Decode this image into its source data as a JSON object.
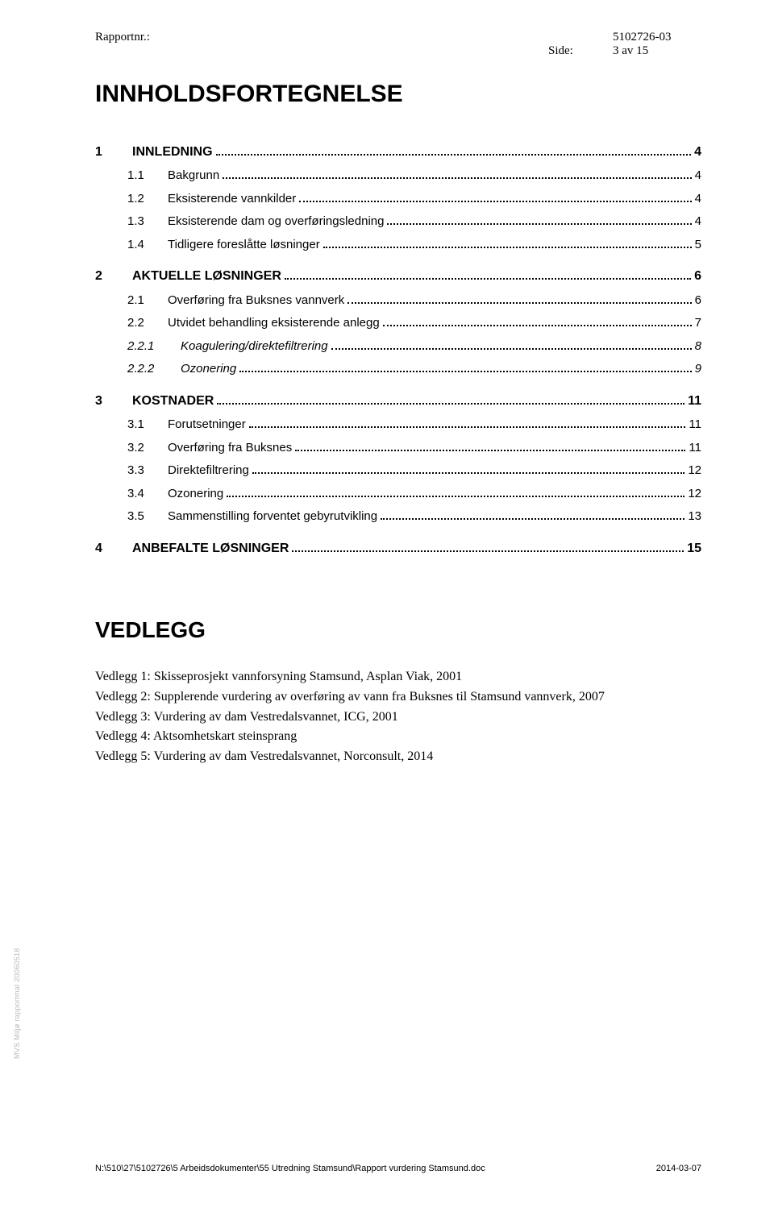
{
  "header": {
    "report_label": "Rapportnr.:",
    "report_value": "5102726-03",
    "page_label": "Side:",
    "page_value": "3 av 15"
  },
  "title": "INNHOLDSFORTEGNELSE",
  "toc": [
    {
      "level": 1,
      "num": "1",
      "label": "INNLEDNING",
      "page": "4"
    },
    {
      "level": 2,
      "num": "1.1",
      "label": "Bakgrunn",
      "page": "4"
    },
    {
      "level": 2,
      "num": "1.2",
      "label": "Eksisterende vannkilder",
      "page": "4"
    },
    {
      "level": 2,
      "num": "1.3",
      "label": "Eksisterende dam og overføringsledning",
      "page": "4"
    },
    {
      "level": 2,
      "num": "1.4",
      "label": "Tidligere foreslåtte løsninger",
      "page": "5"
    },
    {
      "level": 0
    },
    {
      "level": 1,
      "num": "2",
      "label": "AKTUELLE LØSNINGER",
      "page": "6"
    },
    {
      "level": 2,
      "num": "2.1",
      "label": "Overføring fra Buksnes vannverk",
      "page": "6"
    },
    {
      "level": 2,
      "num": "2.2",
      "label": "Utvidet behandling eksisterende anlegg",
      "page": "7"
    },
    {
      "level": 3,
      "num": "2.2.1",
      "label": "Koagulering/direktefiltrering",
      "page": "8"
    },
    {
      "level": 3,
      "num": "2.2.2",
      "label": "Ozonering",
      "page": "9"
    },
    {
      "level": 0
    },
    {
      "level": 1,
      "num": "3",
      "label": "KOSTNADER",
      "page": "11"
    },
    {
      "level": 2,
      "num": "3.1",
      "label": "Forutsetninger",
      "page": "11"
    },
    {
      "level": 2,
      "num": "3.2",
      "label": "Overføring fra Buksnes",
      "page": "11"
    },
    {
      "level": 2,
      "num": "3.3",
      "label": "Direktefiltrering",
      "page": "12"
    },
    {
      "level": 2,
      "num": "3.4",
      "label": "Ozonering",
      "page": "12"
    },
    {
      "level": 2,
      "num": "3.5",
      "label": "Sammenstilling forventet gebyrutvikling",
      "page": "13"
    },
    {
      "level": 0
    },
    {
      "level": 1,
      "num": "4",
      "label": "ANBEFALTE LØSNINGER",
      "page": "15"
    }
  ],
  "vedlegg": {
    "title": "VEDLEGG",
    "items": [
      "Vedlegg 1: Skisseprosjekt vannforsyning Stamsund, Asplan Viak, 2001",
      "Vedlegg 2: Supplerende vurdering av overføring av vann fra Buksnes til Stamsund vannverk, 2007",
      "Vedlegg 3: Vurdering av dam Vestredalsvannet, ICG, 2001",
      "Vedlegg 4: Aktsomhetskart steinsprang",
      "Vedlegg 5: Vurdering av dam Vestredalsvannet, Norconsult, 2014"
    ]
  },
  "side_text": "MVS Miljø rapportmal 20060518",
  "footer": {
    "path": "N:\\510\\27\\5102726\\5 Arbeidsdokumenter\\55 Utredning Stamsund\\Rapport vurdering Stamsund.doc",
    "date": "2014-03-07"
  },
  "colors": {
    "text": "#000000",
    "side_text": "#b9b9b9",
    "background": "#ffffff"
  },
  "typography": {
    "body_font": "Times New Roman",
    "heading_font": "Arial",
    "title_size_pt": 22,
    "vedlegg_title_size_pt": 21,
    "toc_l1_size_pt": 12,
    "toc_l2_size_pt": 11,
    "toc_l3_size_pt": 11,
    "header_size_pt": 11,
    "footer_size_pt": 8,
    "side_text_size_pt": 7
  }
}
